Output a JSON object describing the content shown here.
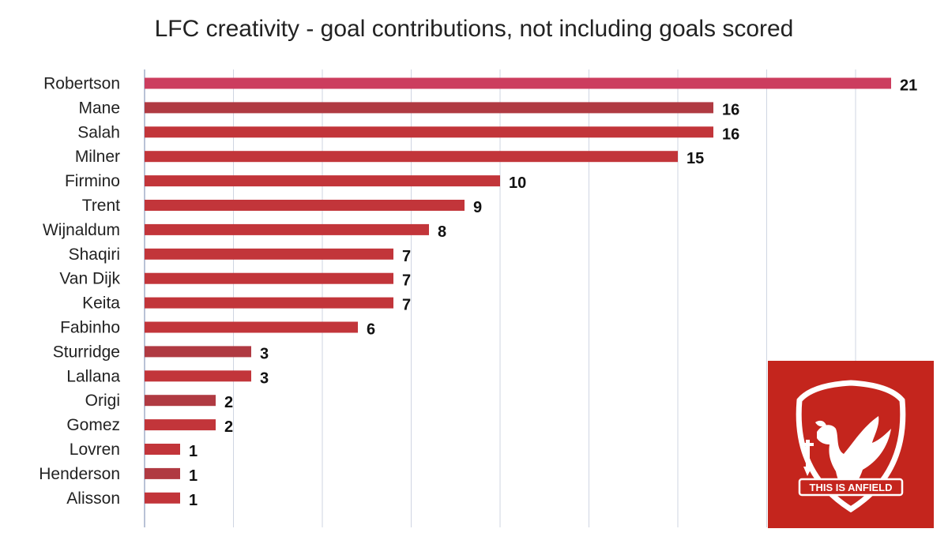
{
  "chart_data": {
    "type": "bar",
    "orientation": "horizontal",
    "title": "LFC creativity - goal contributions, not including goals scored",
    "categories": [
      "Robertson",
      "Mane",
      "Salah",
      "Milner",
      "Firmino",
      "Trent",
      "Wijnaldum",
      "Shaqiri",
      "Van Dijk",
      "Keita",
      "Fabinho",
      "Sturridge",
      "Lallana",
      "Origi",
      "Gomez",
      "Lovren",
      "Henderson",
      "Alisson"
    ],
    "values": [
      21,
      16,
      16,
      15,
      10,
      9,
      8,
      7,
      7,
      7,
      6,
      3,
      3,
      2,
      2,
      1,
      1,
      1
    ],
    "xlim": [
      0,
      22
    ],
    "grid": true,
    "bar_colors": [
      "#cc3d5e",
      "#b03a42",
      "#c2353a",
      "#c2353a",
      "#c2353a",
      "#c2353a",
      "#c2353a",
      "#c2353a",
      "#c2353a",
      "#c2353a",
      "#c2353a",
      "#b03a42",
      "#c2353a",
      "#b03a42",
      "#c2353a",
      "#c2353a",
      "#b03a42",
      "#c2353a"
    ]
  },
  "logo": {
    "text": "THIS IS ANFIELD",
    "background": "#c4251d"
  }
}
